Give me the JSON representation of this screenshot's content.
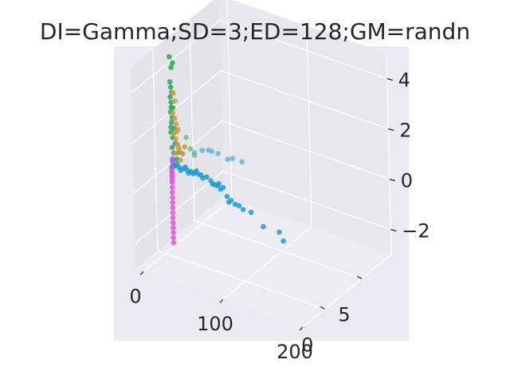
{
  "chart_data": {
    "type": "scatter",
    "projection": "3d",
    "title": "DI=Gamma;SD=3;ED=128;GM=randn",
    "xlabel": "",
    "ylabel": "",
    "zlabel": "",
    "xlim": [
      -10,
      200
    ],
    "ylim": [
      -3,
      9
    ],
    "zlim": [
      -3,
      5
    ],
    "x_ticks": [
      0,
      100,
      200
    ],
    "x_tick_labels": [
      "0",
      "100",
      "200"
    ],
    "y_ticks": [
      0,
      5
    ],
    "y_tick_labels": [
      "0",
      "5"
    ],
    "z_ticks": [
      -2,
      0,
      2,
      4
    ],
    "z_tick_labels": [
      "−2",
      "0",
      "2",
      "4"
    ],
    "grid": true,
    "legend": false,
    "colors": {
      "figure_background": "#ffffff",
      "axes_background": "#eaeaf2",
      "pane_left": "#e3e3ea",
      "pane_right": "#e7e7ee",
      "pane_floor": "#ececf2",
      "grid": "#ffffff",
      "text": "#262626"
    },
    "series": [
      {
        "color": "#e056d8",
        "points": [
          [
            1,
            1,
            -2.8
          ],
          [
            1,
            1,
            -2.6
          ],
          [
            1,
            1,
            -2.4
          ],
          [
            1,
            1,
            -2.2
          ],
          [
            1,
            1,
            -2.0
          ],
          [
            1,
            1,
            -1.8
          ],
          [
            1,
            1,
            -1.6
          ],
          [
            1,
            1,
            -1.4
          ],
          [
            1,
            1,
            -1.2
          ],
          [
            1,
            1,
            -1.0
          ],
          [
            1,
            1,
            -0.8
          ],
          [
            1,
            1,
            -0.6
          ],
          [
            1,
            1,
            -0.4
          ],
          [
            1,
            1,
            -0.3
          ],
          [
            1,
            1,
            -0.2
          ],
          [
            1,
            1,
            -0.1
          ],
          [
            1,
            1,
            0.0
          ],
          [
            1,
            1,
            0.1
          ],
          [
            1,
            1,
            0.2
          ]
        ]
      },
      {
        "color": "#9b6fe0",
        "points": [
          [
            2,
            1,
            0.3
          ],
          [
            3,
            1,
            0.35
          ],
          [
            2,
            1,
            0.45
          ],
          [
            3,
            1,
            0.5
          ],
          [
            2,
            1,
            0.55
          ],
          [
            3,
            1,
            0.25
          ]
        ]
      },
      {
        "color": "#1f9bd1",
        "points": [
          [
            5,
            1,
            0.3
          ],
          [
            10,
            1,
            0.3
          ],
          [
            15,
            1,
            0.3
          ],
          [
            20,
            1,
            0.3
          ],
          [
            25,
            1,
            0.3
          ],
          [
            30,
            1,
            0.3
          ],
          [
            35,
            1,
            0.3
          ],
          [
            8,
            1,
            0.4
          ],
          [
            12,
            1,
            0.2
          ],
          [
            18,
            1,
            0.4
          ],
          [
            22,
            1,
            0.2
          ],
          [
            28,
            1,
            0.25
          ],
          [
            32,
            1,
            0.4
          ],
          [
            38,
            1,
            0.3
          ],
          [
            40,
            1,
            0.2
          ],
          [
            45,
            1,
            0.3
          ],
          [
            50,
            1,
            0.2
          ],
          [
            55,
            1,
            0.1
          ],
          [
            60,
            1,
            0.2
          ],
          [
            52,
            1,
            0.1
          ],
          [
            58,
            1,
            0.1
          ],
          [
            62,
            1,
            0.0
          ],
          [
            65,
            1,
            0.1
          ],
          [
            70,
            1,
            -0.2
          ],
          [
            72,
            1,
            -0.4
          ],
          [
            75,
            1,
            -0.3
          ],
          [
            80,
            1,
            -0.4
          ],
          [
            85,
            1,
            -0.4
          ],
          [
            90,
            1,
            -0.5
          ],
          [
            100,
            1,
            -0.5
          ],
          [
            115,
            1,
            -0.9
          ],
          [
            135,
            1,
            -0.9
          ],
          [
            140,
            1,
            -1.2
          ]
        ]
      },
      {
        "color": "#5ab8dd",
        "points": [
          [
            15,
            1,
            0.9
          ],
          [
            30,
            1,
            1.1
          ],
          [
            40,
            1,
            1.3
          ],
          [
            48,
            1,
            1.4
          ],
          [
            52,
            1,
            1.4
          ],
          [
            60,
            1,
            1.4
          ],
          [
            72,
            1,
            1.3
          ],
          [
            78,
            1,
            1.4
          ],
          [
            90,
            1,
            1.4
          ]
        ]
      },
      {
        "color": "#2aa65e",
        "points": [
          [
            1,
            1,
            4.6
          ],
          [
            3,
            1,
            4.2
          ],
          [
            5,
            1,
            4.4
          ],
          [
            1,
            1,
            3.6
          ],
          [
            2,
            1,
            3.4
          ],
          [
            3,
            1,
            3.2
          ],
          [
            1,
            1,
            3.0
          ],
          [
            2,
            1,
            2.8
          ],
          [
            4,
            1,
            2.6
          ],
          [
            1,
            1,
            2.4
          ],
          [
            3,
            1,
            2.2
          ],
          [
            2,
            1,
            2.0
          ],
          [
            5,
            1,
            1.8
          ],
          [
            1,
            1,
            1.6
          ],
          [
            3,
            1,
            1.4
          ],
          [
            6,
            1,
            1.2
          ],
          [
            2,
            1,
            1.0
          ],
          [
            4,
            1,
            0.8
          ],
          [
            8,
            1,
            0.6
          ],
          [
            10,
            1,
            0.9
          ],
          [
            1,
            1,
            1.8
          ],
          [
            2,
            1,
            2.6
          ]
        ]
      },
      {
        "color": "#6cc08a",
        "points": [
          [
            20,
            1,
            1.6
          ],
          [
            25,
            1,
            1.2
          ],
          [
            30,
            1,
            1.0
          ]
        ]
      },
      {
        "color": "#cf9a3d",
        "points": [
          [
            5,
            1,
            3.2
          ],
          [
            7,
            1,
            2.9
          ],
          [
            4,
            1,
            2.4
          ],
          [
            6,
            1,
            2.2
          ],
          [
            8,
            1,
            2.0
          ],
          [
            10,
            1,
            1.8
          ],
          [
            5,
            1,
            1.6
          ],
          [
            7,
            1,
            1.4
          ],
          [
            9,
            1,
            1.2
          ],
          [
            11,
            1,
            1.0
          ],
          [
            6,
            1,
            0.8
          ],
          [
            12,
            1,
            0.6
          ],
          [
            8,
            1,
            1.7
          ],
          [
            10,
            1,
            1.1
          ],
          [
            15,
            1,
            0.9
          ],
          [
            18,
            1,
            1.2
          ]
        ]
      }
    ]
  }
}
